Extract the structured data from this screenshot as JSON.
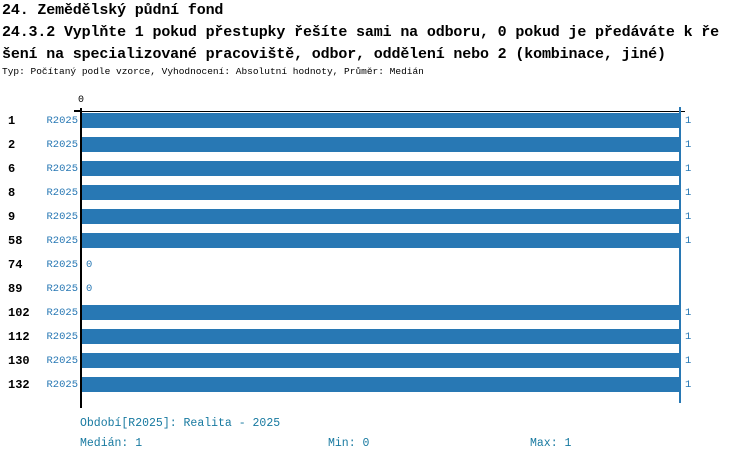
{
  "title": "24. Zemědělský půdní fond",
  "subtitle_lines": [
    "24.3.2 Vyplňte 1 pokud přestupky řešíte sami na odboru, 0 pokud je předáváte k ře",
    "šení na specializované pracoviště, odbor, oddělení nebo 2 (kombinace, jiné)"
  ],
  "meta": "Typ: Počítaný podle vzorce, Vyhodnocení: Absolutní hodnoty, Průměr: Medián",
  "chart_data": {
    "type": "bar",
    "orientation": "horizontal",
    "categories": [
      "1",
      "2",
      "6",
      "8",
      "9",
      "58",
      "74",
      "89",
      "102",
      "112",
      "130",
      "132"
    ],
    "series": [
      {
        "name": "R2025",
        "values": [
          1,
          1,
          1,
          1,
          1,
          1,
          0,
          0,
          1,
          1,
          1,
          1
        ]
      }
    ],
    "value_labels": [
      "1",
      "1",
      "1",
      "1",
      "1",
      "1",
      "0",
      "0",
      "1",
      "1",
      "1",
      "1"
    ],
    "xlim": [
      0,
      1
    ],
    "axis_zero_label": "0",
    "grid": "max-line-only",
    "bar_color": "#2878b4",
    "axis_color": "#000000"
  },
  "footer": {
    "period": "Období[R2025]: Realita - 2025",
    "median": "Medián: 1",
    "min": "Min: 0",
    "max": "Max: 1",
    "text_color": "#1779a0"
  }
}
